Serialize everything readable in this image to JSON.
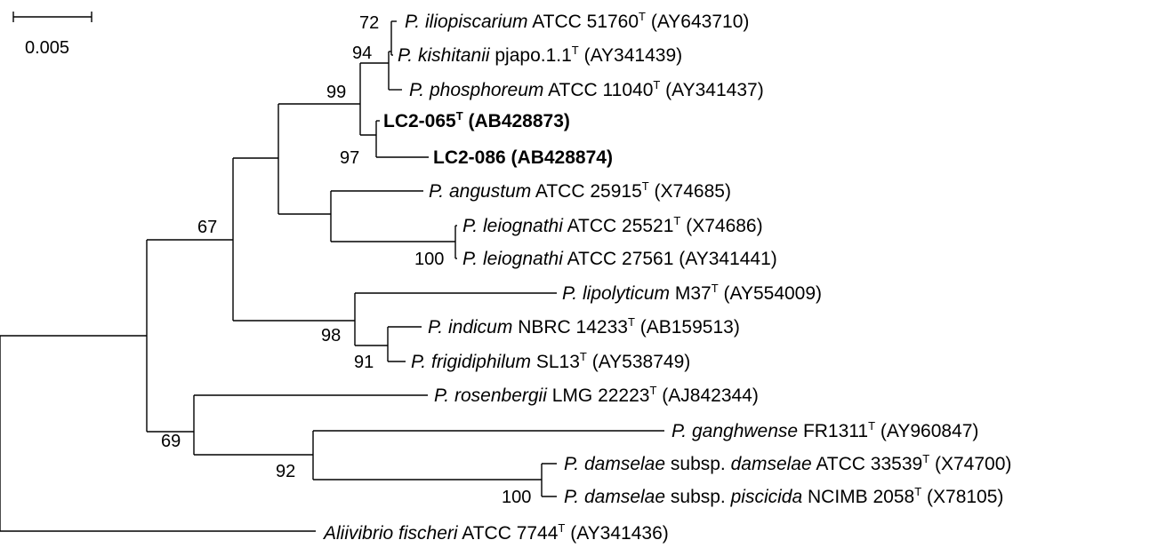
{
  "scale_bar": {
    "label": "0.005"
  },
  "taxa": [
    {
      "id": "iliopiscarium",
      "genus": "P.",
      "species": "iliopiscarium",
      "strain": "ATCC 51760",
      "type_strain": true,
      "accession": "(AY643710)",
      "bold": false
    },
    {
      "id": "kishitanii",
      "genus": "P.",
      "species": "kishitanii",
      "strain": "pjapo.1.1",
      "type_strain": true,
      "accession": "(AY341439)",
      "bold": false
    },
    {
      "id": "phosphoreum",
      "genus": "P.",
      "species": "phosphoreum",
      "strain": "ATCC 11040",
      "type_strain": true,
      "accession": "(AY341437)",
      "bold": false
    },
    {
      "id": "lc2-065",
      "genus": "",
      "species": "",
      "strain": "LC2-065",
      "type_strain": true,
      "accession": "(AB428873)",
      "bold": true
    },
    {
      "id": "lc2-086",
      "genus": "",
      "species": "",
      "strain": "LC2-086",
      "type_strain": false,
      "accession": "(AB428874)",
      "bold": true
    },
    {
      "id": "angustum",
      "genus": "P.",
      "species": "angustum",
      "strain": "ATCC 25915",
      "type_strain": true,
      "accession": "(X74685)",
      "bold": false
    },
    {
      "id": "leiognathi-25521",
      "genus": "P.",
      "species": "leiognathi",
      "strain": "ATCC 25521",
      "type_strain": true,
      "accession": "(X74686)",
      "bold": false
    },
    {
      "id": "leiognathi-27561",
      "genus": "P.",
      "species": "leiognathi",
      "strain": "ATCC 27561",
      "type_strain": false,
      "accession": "(AY341441)",
      "bold": false
    },
    {
      "id": "lipolyticum",
      "genus": "P.",
      "species": "lipolyticum",
      "strain": "M37",
      "type_strain": true,
      "accession": "(AY554009)",
      "bold": false
    },
    {
      "id": "indicum",
      "genus": "P.",
      "species": "indicum",
      "strain": "NBRC 14233",
      "type_strain": true,
      "accession": "(AB159513)",
      "bold": false
    },
    {
      "id": "frigidiphilum",
      "genus": "P.",
      "species": "frigidiphilum",
      "strain": "SL13",
      "type_strain": true,
      "accession": "(AY538749)",
      "bold": false
    },
    {
      "id": "rosenbergii",
      "genus": "P.",
      "species": "rosenbergii",
      "strain": "LMG 22223",
      "type_strain": true,
      "accession": "(AJ842344)",
      "bold": false
    },
    {
      "id": "ganghwense",
      "genus": "P.",
      "species": "ganghwense",
      "strain": "FR1311",
      "type_strain": true,
      "accession": "(AY960847)",
      "bold": false
    },
    {
      "id": "damselae-damselae",
      "genus": "P.",
      "species": "damselae",
      "subsp_word": "subsp.",
      "subspecies": "damselae",
      "strain": "ATCC 33539",
      "type_strain": true,
      "accession": "(X74700)",
      "bold": false
    },
    {
      "id": "damselae-piscicida",
      "genus": "P.",
      "species": "damselae",
      "subsp_word": "subsp.",
      "subspecies": "piscicida",
      "strain": "NCIMB 2058",
      "type_strain": true,
      "accession": "(X78105)",
      "bold": false
    },
    {
      "id": "aliivibrio-fischeri",
      "genus": "Aliivibrio",
      "species": "fischeri",
      "strain": "ATCC 7744",
      "type_strain": true,
      "accession": "(AY341436)",
      "bold": false
    }
  ],
  "bootstrap": [
    {
      "id": "bs-iliopiscarium-kishitanii",
      "value": "72"
    },
    {
      "id": "bs-phosphoreum-clade",
      "value": "94"
    },
    {
      "id": "bs-phosphoreum-lc2-clade",
      "value": "99"
    },
    {
      "id": "bs-lc2-clade",
      "value": "97"
    },
    {
      "id": "bs-leiognathi-clade",
      "value": "100"
    },
    {
      "id": "bs-main-clade",
      "value": "67"
    },
    {
      "id": "bs-lipolyticum-clade",
      "value": "98"
    },
    {
      "id": "bs-indicum-frigidiphilum",
      "value": "91"
    },
    {
      "id": "bs-damselae-subsp",
      "value": "100"
    },
    {
      "id": "bs-ganghwense-damselae",
      "value": "92"
    },
    {
      "id": "bs-rosenbergii-clade",
      "value": "69"
    }
  ]
}
